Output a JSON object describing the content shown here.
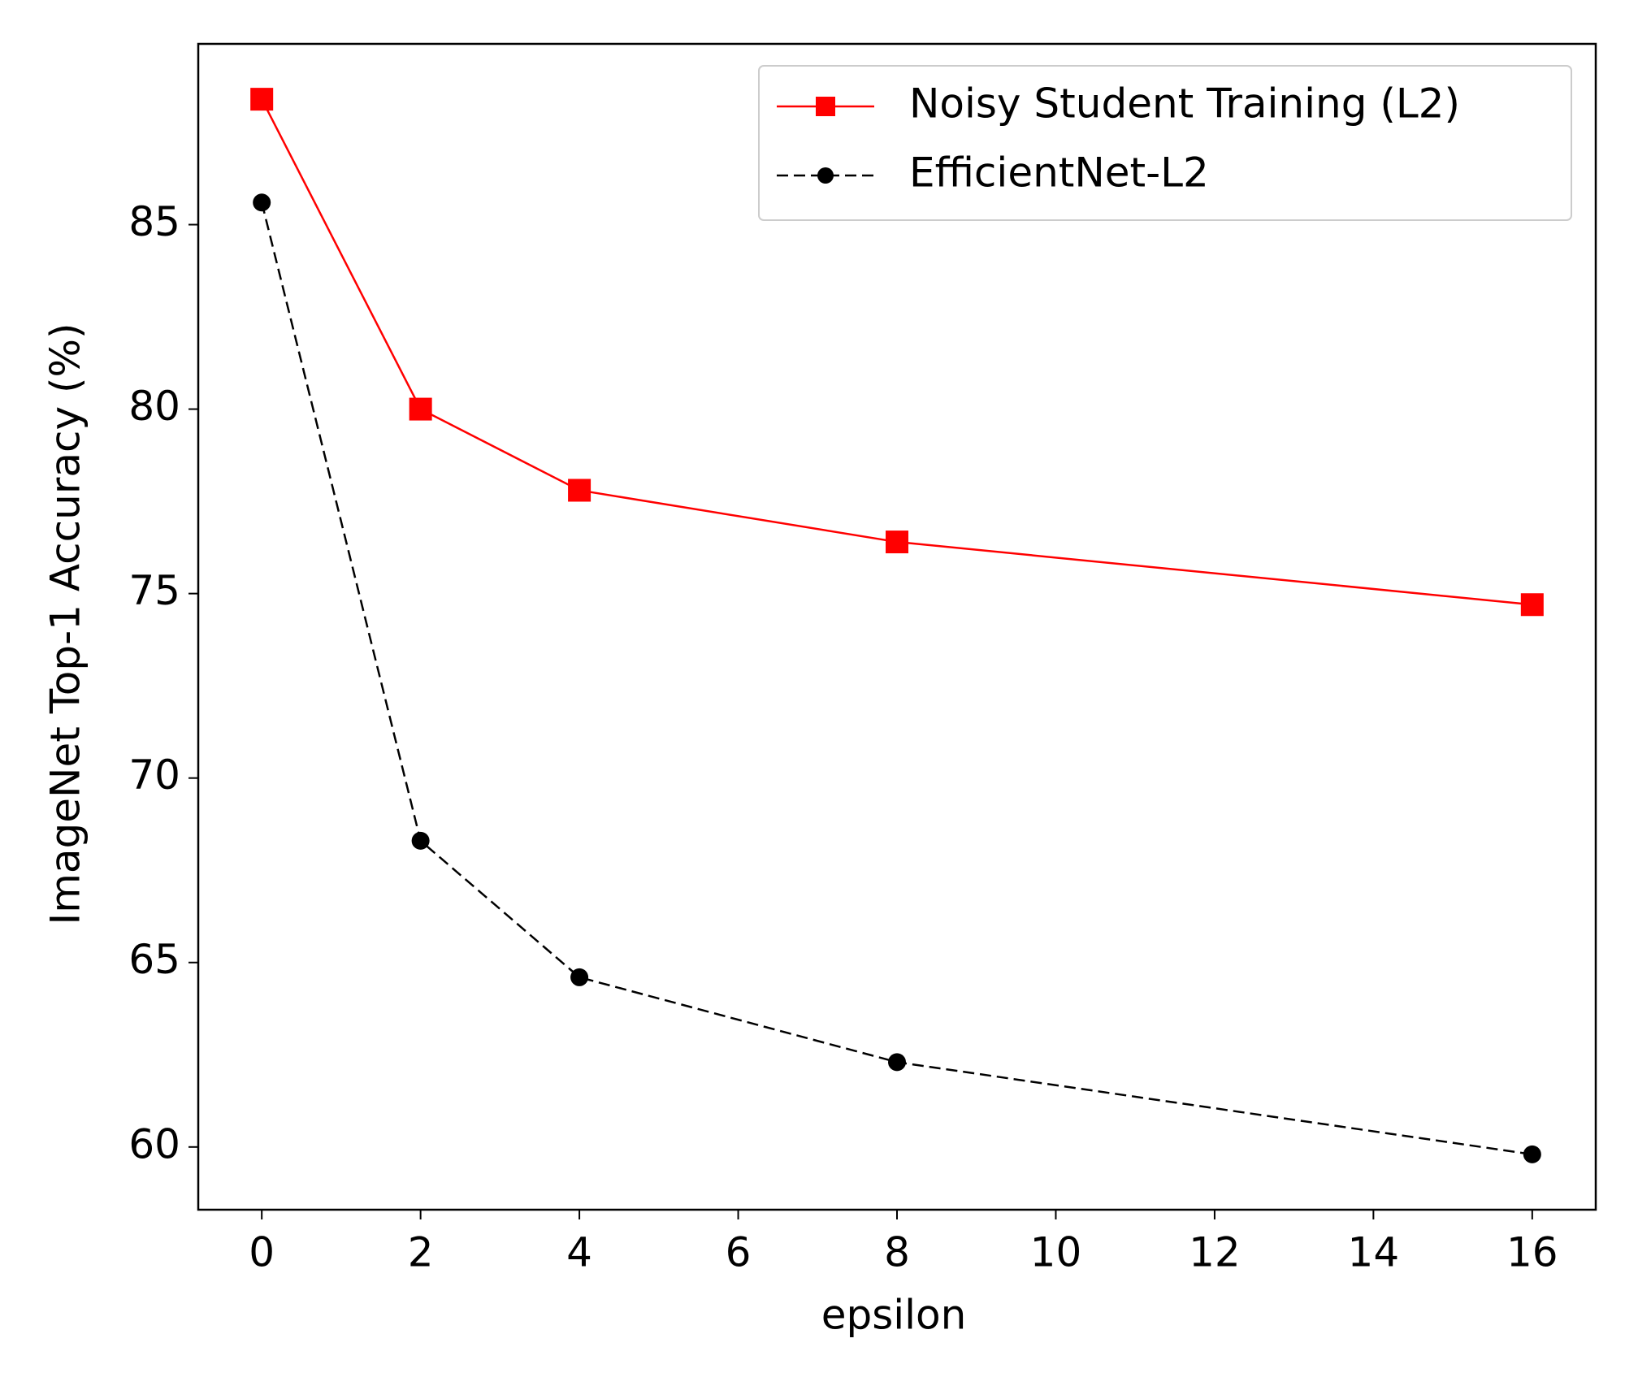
{
  "chart_data": {
    "type": "line",
    "x_label": "epsilon",
    "y_label": "ImageNet Top-1 Accuracy (%)",
    "x": [
      0,
      2,
      4,
      8,
      16
    ],
    "series": [
      {
        "name": "Noisy Student Training (L2)",
        "color": "#ff0000",
        "marker": "square",
        "dash": "solid",
        "values": [
          88.4,
          80.0,
          77.8,
          76.4,
          74.7
        ]
      },
      {
        "name": "EfficientNet-L2",
        "color": "#000000",
        "marker": "circle",
        "dash": "dashed",
        "values": [
          85.6,
          68.3,
          64.6,
          62.3,
          59.8
        ]
      }
    ],
    "xlim": [
      -0.8,
      16.8
    ],
    "xticks": [
      0,
      2,
      4,
      6,
      8,
      10,
      12,
      14,
      16
    ],
    "ylim": [
      58.3,
      89.9
    ],
    "yticks": [
      60,
      65,
      70,
      75,
      80,
      85
    ],
    "grid": false,
    "legend": "upper right"
  }
}
